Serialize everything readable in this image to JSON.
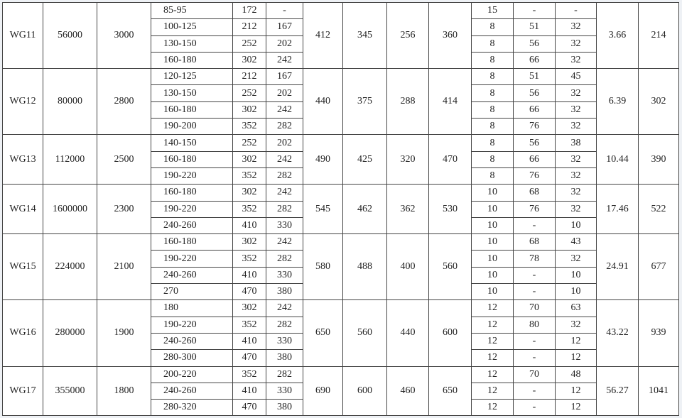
{
  "models": [
    {
      "model": "WG11",
      "c1": "56000",
      "c2": "3000",
      "sub": [
        [
          "85-95",
          "172",
          "-"
        ],
        [
          "100-125",
          "212",
          "167"
        ],
        [
          "130-150",
          "252",
          "202"
        ],
        [
          "160-180",
          "302",
          "242"
        ]
      ],
      "d1": "412",
      "d2": "345",
      "d3": "256",
      "d4": "360",
      "sub2": [
        [
          "15",
          "-",
          "-"
        ],
        [
          "8",
          "51",
          "32"
        ],
        [
          "8",
          "56",
          "32"
        ],
        [
          "8",
          "66",
          "32"
        ]
      ],
      "w": "3.66",
      "last": "214"
    },
    {
      "model": "WG12",
      "c1": "80000",
      "c2": "2800",
      "sub": [
        [
          "120-125",
          "212",
          "167"
        ],
        [
          "130-150",
          "252",
          "202"
        ],
        [
          "160-180",
          "302",
          "242"
        ],
        [
          "190-200",
          "352",
          "282"
        ]
      ],
      "d1": "440",
      "d2": "375",
      "d3": "288",
      "d4": "414",
      "sub2": [
        [
          "8",
          "51",
          "45"
        ],
        [
          "8",
          "56",
          "32"
        ],
        [
          "8",
          "66",
          "32"
        ],
        [
          "8",
          "76",
          "32"
        ]
      ],
      "w": "6.39",
      "last": "302"
    },
    {
      "model": "WG13",
      "c1": "112000",
      "c2": "2500",
      "sub": [
        [
          "140-150",
          "252",
          "202"
        ],
        [
          "160-180",
          "302",
          "242"
        ],
        [
          "190-220",
          "352",
          "282"
        ]
      ],
      "d1": "490",
      "d2": "425",
      "d3": "320",
      "d4": "470",
      "sub2": [
        [
          "8",
          "56",
          "38"
        ],
        [
          "8",
          "66",
          "32"
        ],
        [
          "8",
          "76",
          "32"
        ]
      ],
      "w": "10.44",
      "last": "390"
    },
    {
      "model": "WG14",
      "c1": "1600000",
      "c2": "2300",
      "sub": [
        [
          "160-180",
          "302",
          "242"
        ],
        [
          "190-220",
          "352",
          "282"
        ],
        [
          "240-260",
          "410",
          "330"
        ]
      ],
      "d1": "545",
      "d2": "462",
      "d3": "362",
      "d4": "530",
      "sub2": [
        [
          "10",
          "68",
          "32"
        ],
        [
          "10",
          "76",
          "32"
        ],
        [
          "10",
          "-",
          "10"
        ]
      ],
      "w": "17.46",
      "last": "522"
    },
    {
      "model": "WG15",
      "c1": "224000",
      "c2": "2100",
      "sub": [
        [
          "160-180",
          "302",
          "242"
        ],
        [
          "190-220",
          "352",
          "282"
        ],
        [
          "240-260",
          "410",
          "330"
        ],
        [
          "270",
          "470",
          "380"
        ]
      ],
      "d1": "580",
      "d2": "488",
      "d3": "400",
      "d4": "560",
      "sub2": [
        [
          "10",
          "68",
          "43"
        ],
        [
          "10",
          "78",
          "32"
        ],
        [
          "10",
          "-",
          "10"
        ],
        [
          "10",
          "-",
          "10"
        ]
      ],
      "w": "24.91",
      "last": "677"
    },
    {
      "model": "WG16",
      "c1": "280000",
      "c2": "1900",
      "sub": [
        [
          "180",
          "302",
          "242"
        ],
        [
          "190-220",
          "352",
          "282"
        ],
        [
          "240-260",
          "410",
          "330"
        ],
        [
          "280-300",
          "470",
          "380"
        ]
      ],
      "d1": "650",
      "d2": "560",
      "d3": "440",
      "d4": "600",
      "sub2": [
        [
          "12",
          "70",
          "63"
        ],
        [
          "12",
          "80",
          "32"
        ],
        [
          "12",
          "-",
          "12"
        ],
        [
          "12",
          "-",
          "12"
        ]
      ],
      "w": "43.22",
      "last": "939"
    },
    {
      "model": "WG17",
      "c1": "355000",
      "c2": "1800",
      "sub": [
        [
          "200-220",
          "352",
          "282"
        ],
        [
          "240-260",
          "410",
          "330"
        ],
        [
          "280-320",
          "470",
          "380"
        ]
      ],
      "d1": "690",
      "d2": "600",
      "d3": "460",
      "d4": "650",
      "sub2": [
        [
          "12",
          "70",
          "48"
        ],
        [
          "12",
          "-",
          "12"
        ],
        [
          "12",
          "-",
          "12"
        ]
      ],
      "w": "56.27",
      "last": "1041"
    }
  ]
}
